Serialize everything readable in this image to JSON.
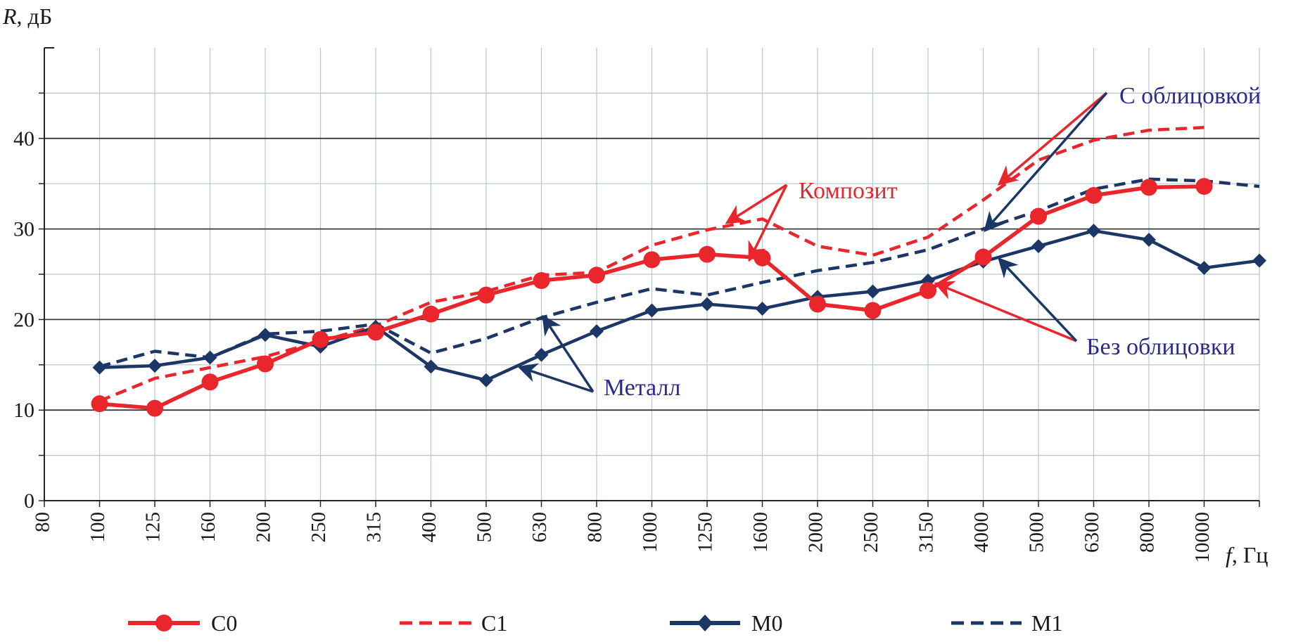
{
  "chart_data": {
    "type": "line",
    "ylabel_var": "R",
    "ylabel_unit": ", дБ",
    "xlabel_var": "f",
    "xlabel_unit": ", Гц",
    "ylim": [
      0,
      50
    ],
    "yticks": [
      0,
      10,
      20,
      30,
      40
    ],
    "grid": true,
    "legend_position": "bottom",
    "categories": [
      "80",
      "100",
      "125",
      "160",
      "200",
      "250",
      "315",
      "400",
      "500",
      "630",
      "800",
      "1000",
      "1250",
      "1600",
      "2000",
      "2500",
      "3150",
      "4000",
      "5000",
      "6300",
      "8000",
      "10000"
    ],
    "series": [
      {
        "name": "C0",
        "color": "#e8262b",
        "style": "solid-circle",
        "values": [
          null,
          10.7,
          10.2,
          13.1,
          15.1,
          17.8,
          18.6,
          20.6,
          22.7,
          24.3,
          24.9,
          26.6,
          27.2,
          26.8,
          21.7,
          21.0,
          23.2,
          26.9,
          31.4,
          33.7,
          34.6,
          34.7
        ]
      },
      {
        "name": "C1",
        "color": "#e8262b",
        "style": "dashed",
        "values": [
          null,
          11.0,
          13.5,
          14.7,
          15.9,
          17.6,
          19.3,
          21.9,
          23.1,
          24.9,
          25.2,
          28.2,
          29.9,
          31.1,
          28.1,
          27.1,
          29.1,
          33.2,
          37.6,
          39.8,
          40.9,
          41.2
        ],
        "tail": null
      },
      {
        "name": "M0",
        "color": "#1c3766",
        "style": "solid-diamond",
        "values": [
          null,
          14.7,
          14.9,
          15.8,
          18.3,
          17.0,
          19.2,
          14.8,
          13.3,
          16.1,
          18.7,
          21.0,
          21.7,
          21.2,
          22.5,
          23.1,
          24.3,
          26.4,
          28.1,
          29.8,
          28.8,
          25.7
        ],
        "tail": 26.5
      },
      {
        "name": "M1",
        "color": "#1c3766",
        "style": "dashed",
        "values": [
          null,
          14.8,
          16.5,
          15.8,
          18.4,
          18.7,
          19.5,
          16.3,
          17.9,
          20.2,
          21.9,
          23.4,
          22.7,
          24.1,
          25.4,
          26.3,
          27.7,
          30.0,
          32.0,
          34.4,
          35.5,
          35.3
        ],
        "tail": 34.7
      }
    ],
    "annotations": [
      {
        "id": "composite",
        "text": "Композит",
        "color": "#e8262b"
      },
      {
        "id": "with_cladding",
        "text": "С облицовкой",
        "color": "#2b2b8c"
      },
      {
        "id": "without_cladding",
        "text": "Без облицовки",
        "color": "#2b2b8c"
      },
      {
        "id": "metal",
        "text": "Металл",
        "color": "#2b2b8c"
      }
    ]
  }
}
